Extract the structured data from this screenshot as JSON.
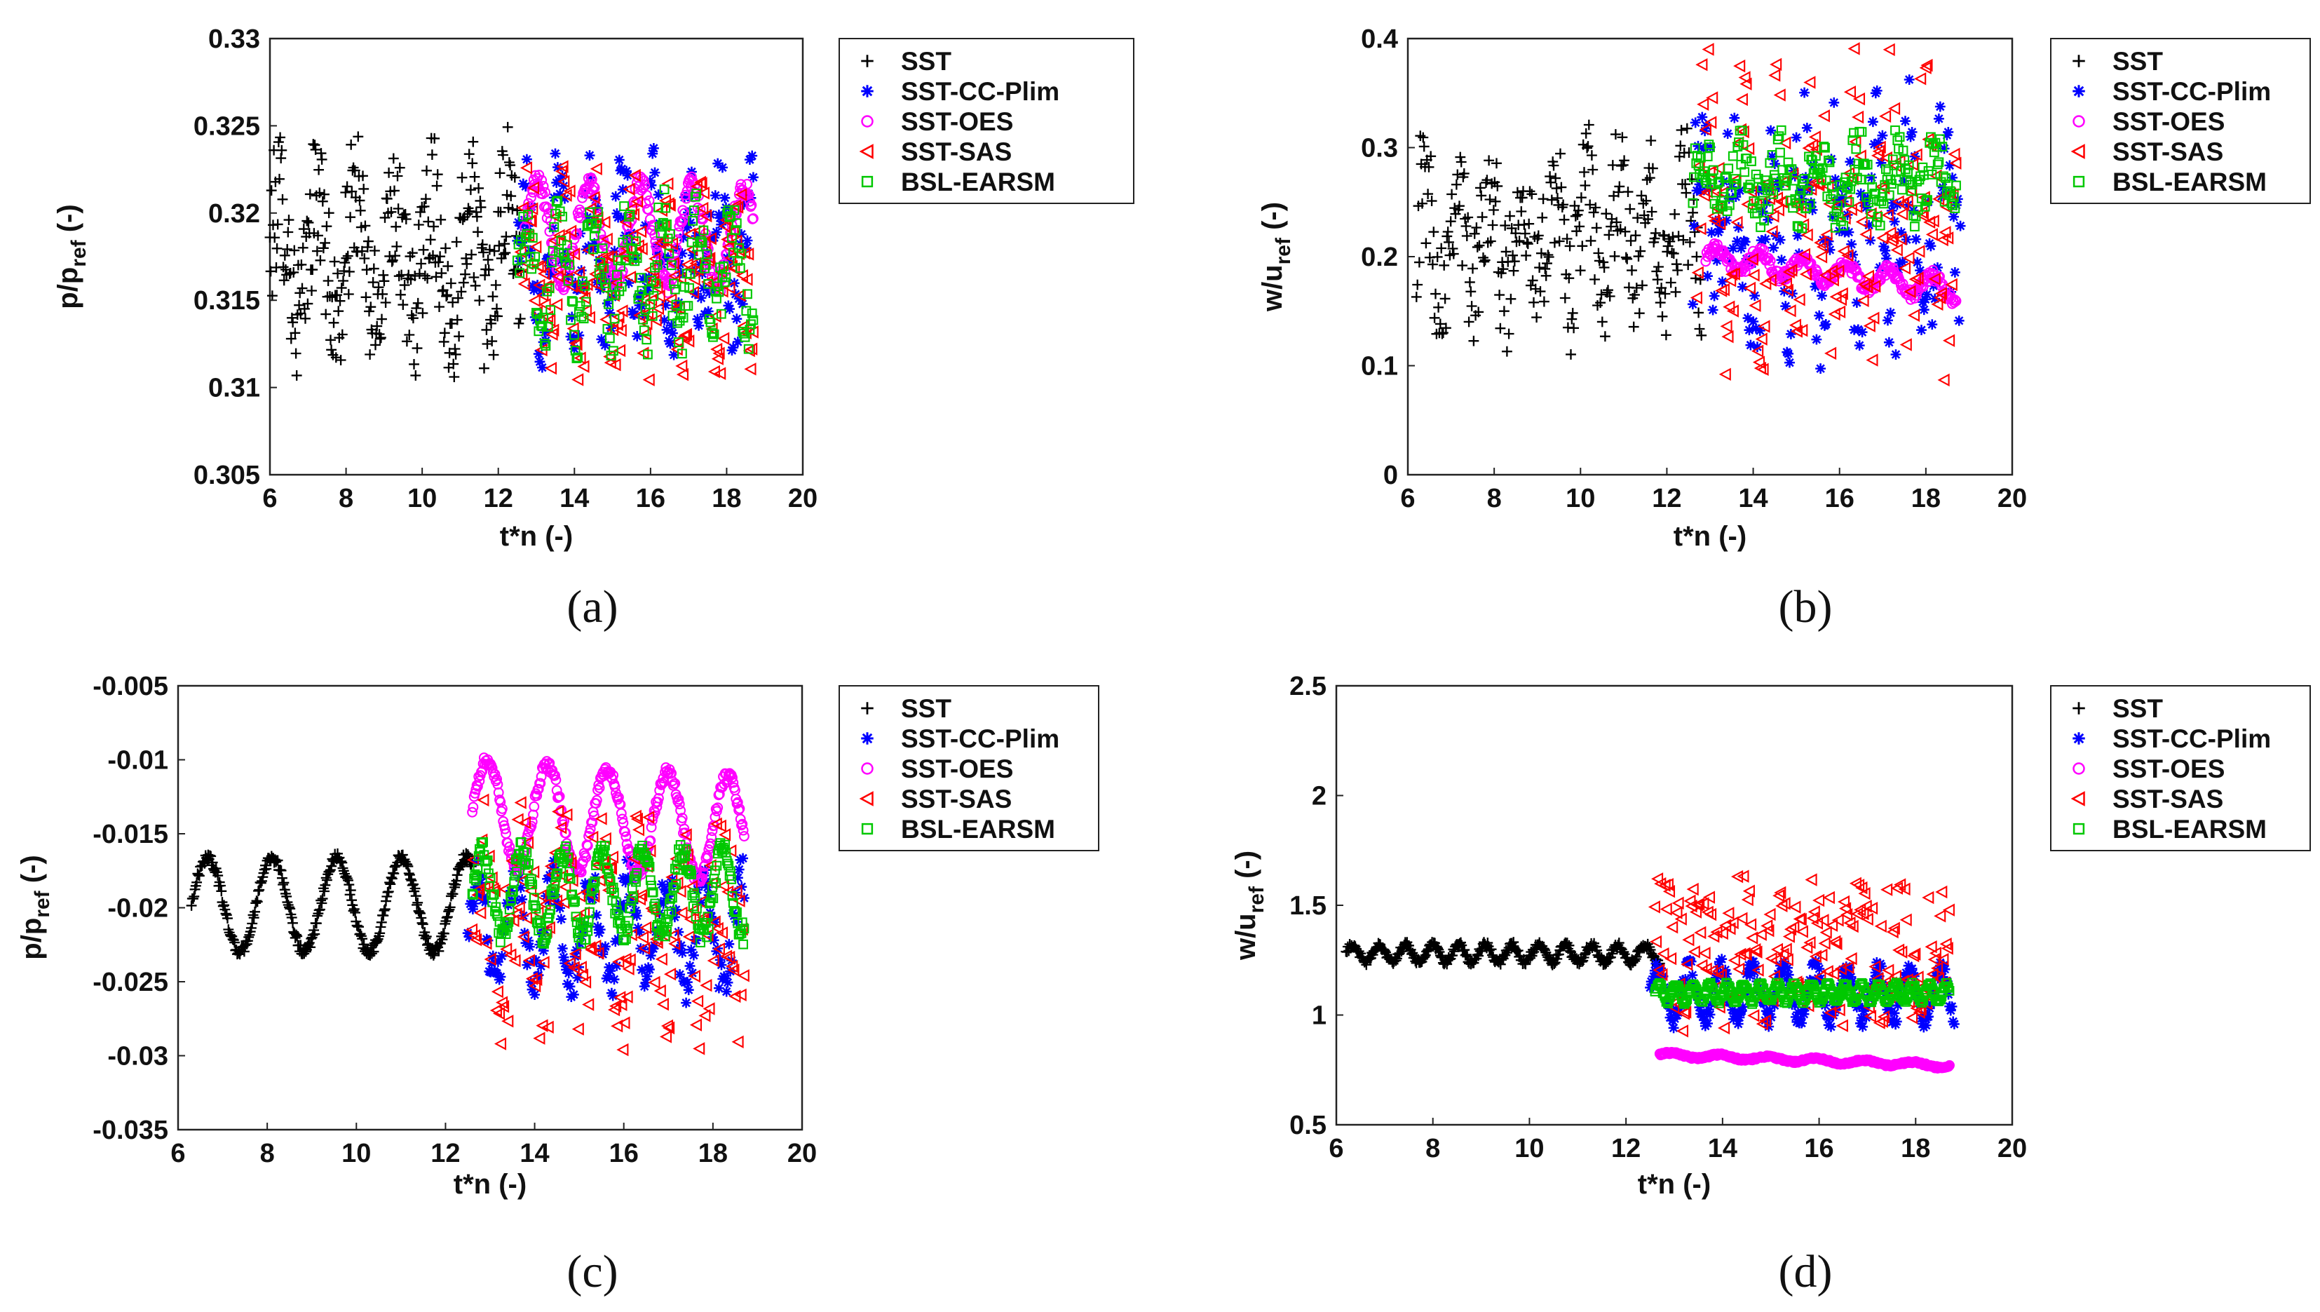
{
  "colors": {
    "SST": "#000000",
    "SST-CC-Plim": "#0000ff",
    "SST-OES": "#ff00ff",
    "SST-SAS": "#ff0000",
    "BSL-EARSM": "#00c800"
  },
  "chart_data": [
    {
      "id": "a",
      "panel_label": "(a)",
      "type": "scatter",
      "xlabel": "t*n (-)",
      "ylabel_main": "p/p",
      "ylabel_sub": "ref",
      "ylabel_tail": " (-)",
      "xlim": [
        6,
        20
      ],
      "ylim": [
        0.305,
        0.33
      ],
      "xticks": [
        6,
        8,
        10,
        12,
        14,
        16,
        18,
        20
      ],
      "xtick_labels": [
        "6",
        "8",
        "10",
        "12",
        "14",
        "16",
        "18",
        "20"
      ],
      "yticks": [
        0.305,
        0.31,
        0.315,
        0.32,
        0.325,
        0.33
      ],
      "ytick_labels": [
        "0.305",
        "0.31",
        "0.315",
        "0.32",
        "0.325",
        "0.33"
      ],
      "legend_position": "outside-right",
      "series": [
        {
          "name": "SST",
          "marker": "plus",
          "x_start": 6.0,
          "x_end": 12.6,
          "mean": 0.3175,
          "amp": 0.0035,
          "period": 1.0,
          "noise": 0.004,
          "trend": 0,
          "count": 320
        },
        {
          "name": "SST-CC-Plim",
          "marker": "star",
          "x_start": 12.5,
          "x_end": 18.7,
          "mean": 0.3175,
          "amp": 0.0035,
          "period": 0.85,
          "noise": 0.003,
          "trend": 0,
          "count": 200
        },
        {
          "name": "SST-OES",
          "marker": "circle",
          "x_start": 12.7,
          "x_end": 18.7,
          "mean": 0.319,
          "amp": 0.0028,
          "period": 1.35,
          "noise": 0.0006,
          "trend": -0.0004,
          "count": 260
        },
        {
          "name": "SST-SAS",
          "marker": "triangle-left",
          "x_start": 12.6,
          "x_end": 18.7,
          "mean": 0.3165,
          "amp": 0.003,
          "period": 0.9,
          "noise": 0.0035,
          "trend": 0,
          "count": 200
        },
        {
          "name": "BSL-EARSM",
          "marker": "square",
          "x_start": 12.5,
          "x_end": 18.7,
          "mean": 0.3165,
          "amp": 0.003,
          "period": 0.9,
          "noise": 0.002,
          "trend": 0,
          "count": 200
        }
      ]
    },
    {
      "id": "b",
      "panel_label": "(b)",
      "type": "scatter",
      "xlabel": "t*n (-)",
      "ylabel_main": "w/u",
      "ylabel_sub": "ref",
      "ylabel_tail": " (-)",
      "xlim": [
        6,
        20
      ],
      "ylim": [
        0,
        0.4
      ],
      "xticks": [
        6,
        8,
        10,
        12,
        14,
        16,
        18,
        20
      ],
      "xtick_labels": [
        "6",
        "8",
        "10",
        "12",
        "14",
        "16",
        "18",
        "20"
      ],
      "yticks": [
        0,
        0.1,
        0.2,
        0.3,
        0.4
      ],
      "ytick_labels": [
        "0",
        "0.1",
        "0.2",
        "0.3",
        "0.4"
      ],
      "legend_position": "outside-right",
      "series": [
        {
          "name": "SST",
          "marker": "plus",
          "x_start": 6.2,
          "x_end": 12.8,
          "mean": 0.22,
          "amp": 0.05,
          "period": 0.75,
          "noise": 0.06,
          "trend": 0,
          "count": 300
        },
        {
          "name": "SST-CC-Plim",
          "marker": "star",
          "x_start": 12.6,
          "x_end": 18.8,
          "mean": 0.23,
          "amp": 0.06,
          "period": 0.8,
          "noise": 0.08,
          "trend": 0,
          "count": 200
        },
        {
          "name": "SST-OES",
          "marker": "circle",
          "x_start": 12.9,
          "x_end": 18.7,
          "mean": 0.2,
          "amp": 0.01,
          "period": 1.0,
          "noise": 0.005,
          "trend": -0.03,
          "count": 260
        },
        {
          "name": "SST-SAS",
          "marker": "triangle-left",
          "x_start": 12.7,
          "x_end": 18.7,
          "mean": 0.24,
          "amp": 0.07,
          "period": 0.85,
          "noise": 0.09,
          "trend": 0,
          "count": 200
        },
        {
          "name": "BSL-EARSM",
          "marker": "square",
          "x_start": 12.6,
          "x_end": 18.7,
          "mean": 0.27,
          "amp": 0.025,
          "period": 0.9,
          "noise": 0.025,
          "trend": 0,
          "count": 230
        }
      ]
    },
    {
      "id": "c",
      "panel_label": "(c)",
      "type": "scatter",
      "xlabel": "t*n (-)",
      "ylabel_main": "p/p",
      "ylabel_sub": "ref",
      "ylabel_tail": " (-)",
      "xlim": [
        6,
        20
      ],
      "ylim": [
        -0.035,
        -0.005
      ],
      "xticks": [
        6,
        8,
        10,
        12,
        14,
        16,
        18,
        20
      ],
      "xtick_labels": [
        "6",
        "8",
        "10",
        "12",
        "14",
        "16",
        "18",
        "20"
      ],
      "yticks": [
        -0.035,
        -0.03,
        -0.025,
        -0.02,
        -0.015,
        -0.01,
        -0.005
      ],
      "ytick_labels": [
        "-0.035",
        "-0.03",
        "-0.025",
        "-0.02",
        "-0.015",
        "-0.01",
        "-0.005"
      ],
      "legend_position": "outside-right",
      "series": [
        {
          "name": "SST",
          "marker": "plus",
          "x_start": 6.3,
          "x_end": 12.6,
          "mean": -0.0198,
          "amp": 0.0032,
          "period": 1.45,
          "noise": 0.0003,
          "trend": 0,
          "count": 320
        },
        {
          "name": "SST-CC-Plim",
          "marker": "star",
          "x_start": 12.5,
          "x_end": 18.7,
          "mean": -0.0215,
          "amp": 0.0035,
          "period": 0.85,
          "noise": 0.0015,
          "trend": 0,
          "count": 220
        },
        {
          "name": "SST-OES",
          "marker": "circle",
          "x_start": 12.6,
          "x_end": 18.7,
          "mean": -0.0135,
          "amp": 0.0035,
          "period": 1.35,
          "noise": 0.0004,
          "trend": -0.0012,
          "count": 300
        },
        {
          "name": "SST-SAS",
          "marker": "triangle-left",
          "x_start": 12.6,
          "x_end": 18.7,
          "mean": -0.021,
          "amp": 0.0035,
          "period": 0.9,
          "noise": 0.0055,
          "trend": 0,
          "count": 190
        },
        {
          "name": "BSL-EARSM",
          "marker": "square",
          "x_start": 12.6,
          "x_end": 18.7,
          "mean": -0.019,
          "amp": 0.0028,
          "period": 0.9,
          "noise": 0.0008,
          "trend": 0,
          "count": 300
        }
      ]
    },
    {
      "id": "d",
      "panel_label": "(d)",
      "type": "scatter",
      "xlabel": "t*n (-)",
      "ylabel_main": "w/u",
      "ylabel_sub": "ref",
      "ylabel_tail": " (-)",
      "xlim": [
        6,
        20
      ],
      "ylim": [
        0.5,
        2.5
      ],
      "xticks": [
        6,
        8,
        10,
        12,
        14,
        16,
        18,
        20
      ],
      "xtick_labels": [
        "6",
        "8",
        "10",
        "12",
        "14",
        "16",
        "18",
        "20"
      ],
      "yticks": [
        0.5,
        1,
        1.5,
        2,
        2.5
      ],
      "ytick_labels": [
        "0.5",
        "1",
        "1.5",
        "2",
        "2.5"
      ],
      "legend_position": "outside-right",
      "series": [
        {
          "name": "SST",
          "marker": "plus",
          "x_start": 6.2,
          "x_end": 12.7,
          "mean": 1.28,
          "amp": 0.04,
          "period": 0.55,
          "noise": 0.015,
          "trend": 0,
          "count": 340
        },
        {
          "name": "SST-CC-Plim",
          "marker": "star",
          "x_start": 12.5,
          "x_end": 18.8,
          "mean": 1.1,
          "amp": 0.12,
          "period": 0.65,
          "noise": 0.04,
          "trend": 0,
          "count": 260
        },
        {
          "name": "SST-OES",
          "marker": "circle",
          "x_start": 12.7,
          "x_end": 18.7,
          "mean": 0.82,
          "amp": 0.01,
          "period": 1.0,
          "noise": 0.005,
          "trend": -0.05,
          "count": 320
        },
        {
          "name": "SST-SAS",
          "marker": "triangle-left",
          "x_start": 12.6,
          "x_end": 18.7,
          "mean": 1.3,
          "amp": 0.1,
          "period": 0.8,
          "noise": 0.28,
          "trend": 0,
          "count": 200
        },
        {
          "name": "BSL-EARSM",
          "marker": "square",
          "x_start": 12.6,
          "x_end": 18.7,
          "mean": 1.1,
          "amp": 0.04,
          "period": 0.35,
          "noise": 0.01,
          "trend": 0,
          "count": 340
        }
      ]
    }
  ]
}
